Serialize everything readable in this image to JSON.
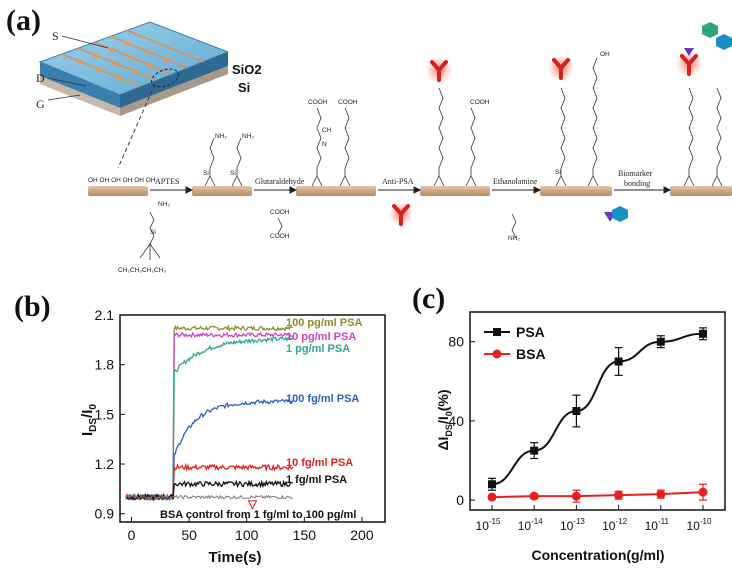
{
  "panel_a": {
    "label": "(a)",
    "chip": {
      "s": "S",
      "d": "D",
      "g": "G",
      "sio2": "SiO2",
      "si": "Si"
    },
    "steps": [
      "APTES",
      "Glutaraldehyde",
      "Anti-PSA",
      "Ethanolamine",
      "Biomarker",
      "bonding"
    ],
    "chem": {
      "oh_row": "OH OH OH OH OH OH",
      "nh2": "NH₂",
      "si": "Si",
      "o": "O",
      "cooh": "COOH",
      "ch": "CH",
      "n": "N",
      "oh": "OH",
      "y": "Y",
      "ethyls": "CH₂CH₃CH₂CH₃"
    }
  },
  "panel_b": {
    "label": "(b)",
    "note": "BSA control from 1 fg/ml to 100 pg/ml",
    "chart_data": {
      "type": "line",
      "xlabel": "Time(s)",
      "ylabel": "IDS/I0",
      "xlim": [
        -10,
        220
      ],
      "ylim": [
        0.85,
        2.1
      ],
      "xticks": [
        0,
        50,
        100,
        150,
        200
      ],
      "yticks": [
        0.9,
        1.2,
        1.5,
        1.8,
        2.1
      ],
      "series": [
        {
          "name": "100 pg/ml PSA",
          "color": "#8c8c2a",
          "baseline": 1.0,
          "plateau": 2.02,
          "tau": 3
        },
        {
          "name": "10 pg/ml PSA",
          "color": "#d040c0",
          "baseline": 1.0,
          "plateau": 1.98,
          "tau": 4
        },
        {
          "name": "1 pg/ml PSA",
          "color": "#2ea58e",
          "baseline": 1.0,
          "plateau": 1.96,
          "tau": 25,
          "jump": 1.75
        },
        {
          "name": "100 fg/ml PSA",
          "color": "#2f5fbf",
          "baseline": 1.0,
          "plateau": 1.58,
          "tau": 18,
          "jump": 1.25
        },
        {
          "name": "10 fg/ml PSA",
          "color": "#e02020",
          "baseline": 1.0,
          "plateau": 1.18,
          "tau": 3
        },
        {
          "name": "1 fg/ml PSA",
          "color": "#111111",
          "baseline": 1.0,
          "plateau": 1.08,
          "tau": 3
        }
      ],
      "t_start": -5,
      "t_inject": 37,
      "t_end": 140
    }
  },
  "panel_c": {
    "label": "(c)",
    "chart_data": {
      "type": "line",
      "xlabel": "Concentration(g/ml)",
      "ylabel": "ΔIDS/I0(%)",
      "x_exponents": [
        -15,
        -14,
        -13,
        -12,
        -11,
        -10
      ],
      "ylim": [
        -5,
        95
      ],
      "yticks": [
        0,
        40,
        80
      ],
      "series": [
        {
          "name": "PSA",
          "color": "#111111",
          "values": [
            8,
            25,
            45,
            70,
            80,
            84
          ],
          "errors": [
            3,
            4,
            8,
            7,
            3,
            3
          ]
        },
        {
          "name": "BSA",
          "color": "#e82020",
          "values": [
            1.5,
            2,
            2,
            2.5,
            3,
            4
          ],
          "errors": [
            1,
            1,
            3,
            2,
            2,
            4
          ]
        }
      ]
    }
  }
}
